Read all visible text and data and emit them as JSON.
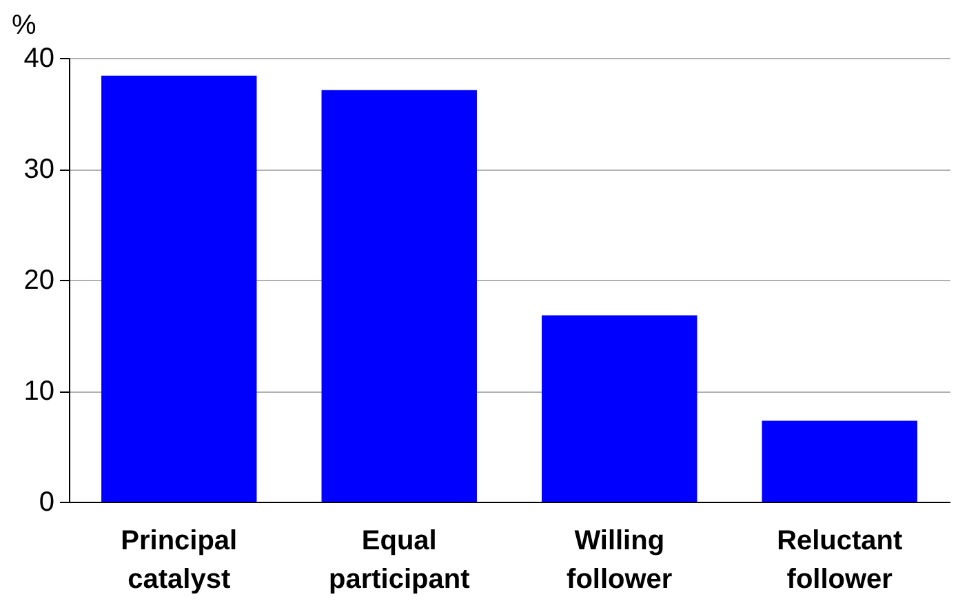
{
  "chart_data": {
    "type": "bar",
    "ylabel": "%",
    "categories": [
      "Principal catalyst",
      "Equal participant",
      "Willing follower",
      "Reluctant follower"
    ],
    "values": [
      38.4,
      37.1,
      16.8,
      7.3
    ],
    "color": "#0000ff",
    "ylim": [
      0,
      40
    ],
    "yticks": [
      0,
      10,
      20,
      30,
      40
    ],
    "grid": "y"
  }
}
